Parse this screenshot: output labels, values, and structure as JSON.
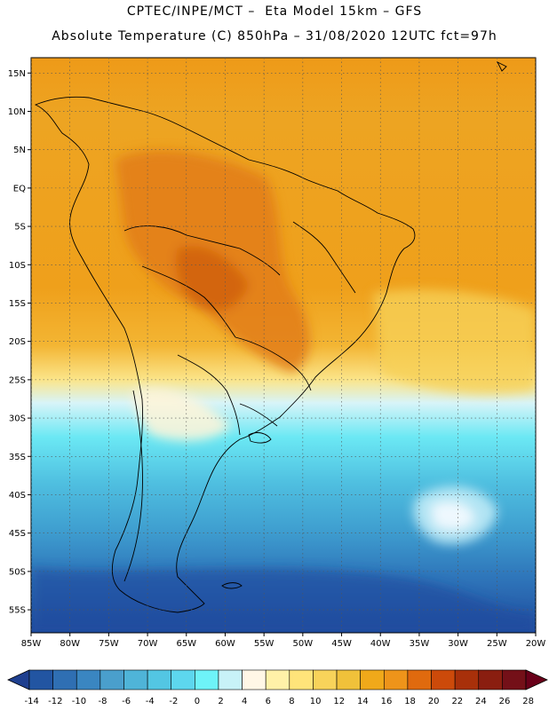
{
  "header": {
    "line1": "CPTEC/INPE/MCT –  Eta Model 15km – GFS",
    "line2": "Absolute Temperature (C) 850hPa – 31/08/2020 12UTC fct=97h"
  },
  "map": {
    "lon_labels": [
      "85W",
      "80W",
      "75W",
      "70W",
      "65W",
      "60W",
      "55W",
      "50W",
      "45W",
      "40W",
      "35W",
      "30W",
      "25W",
      "20W"
    ],
    "lat_labels": [
      "15N",
      "10N",
      "5N",
      "EQ",
      "5S",
      "10S",
      "15S",
      "20S",
      "25S",
      "30S",
      "35S",
      "40S",
      "45S",
      "50S",
      "55S"
    ],
    "lon_range": [
      -85,
      -20
    ],
    "lat_range": [
      17,
      -58
    ]
  },
  "colorbar": {
    "labels": [
      "-14",
      "-12",
      "-10",
      "-8",
      "-6",
      "-4",
      "-2",
      "0",
      "2",
      "4",
      "6",
      "8",
      "10",
      "12",
      "14",
      "16",
      "18",
      "20",
      "22",
      "24",
      "26",
      "28"
    ],
    "colors": [
      "#1e3f8f",
      "#2255a2",
      "#2f6fb3",
      "#3a86c1",
      "#4a9fcc",
      "#4fb4d8",
      "#53c6e3",
      "#5dd7ee",
      "#6ef3f8",
      "#c8f2f8",
      "#fff7e6",
      "#fff1a8",
      "#ffe47a",
      "#f8d35a",
      "#f0c13a",
      "#f0a91a",
      "#ee941a",
      "#e06a0e",
      "#cc4a0a",
      "#a8300a",
      "#8a1e10",
      "#741018",
      "#690019"
    ]
  }
}
